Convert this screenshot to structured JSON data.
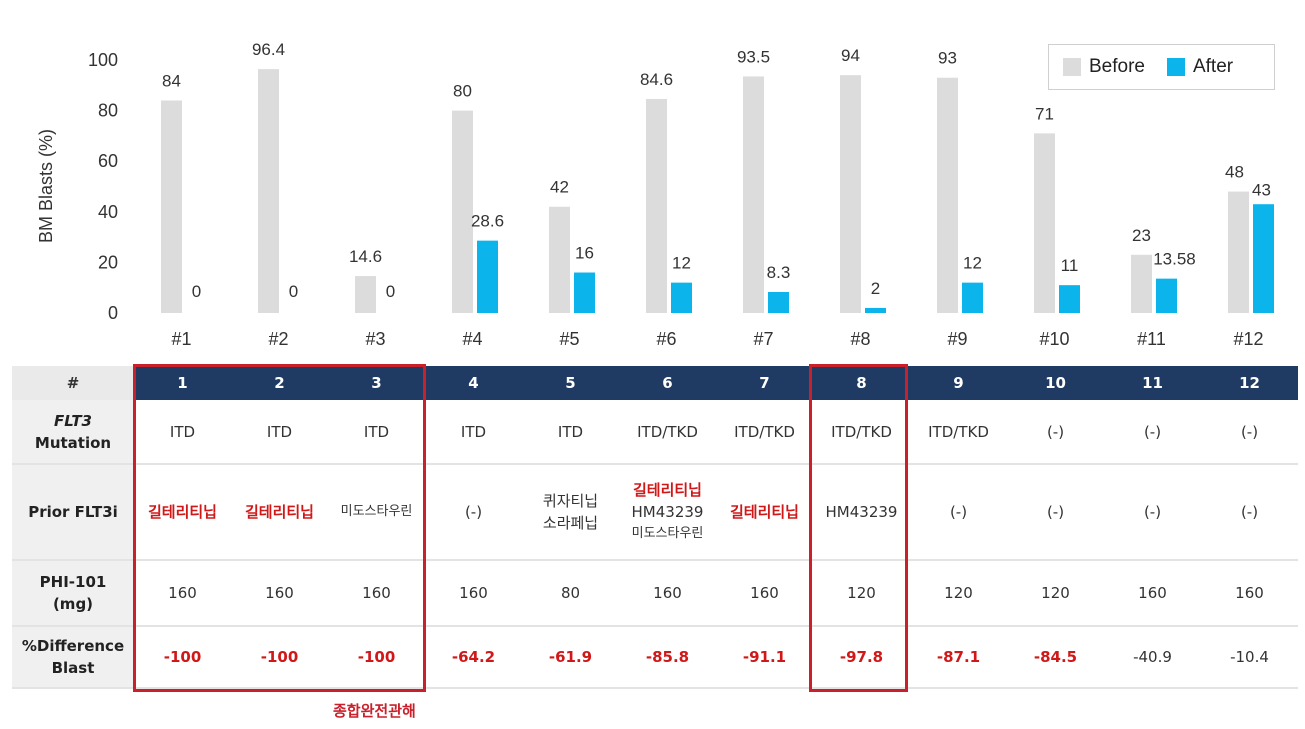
{
  "chart_data": {
    "type": "bar",
    "ylabel": "BM Blasts (%)",
    "ylim": [
      0,
      100
    ],
    "yticks": [
      0,
      20,
      40,
      60,
      80,
      100
    ],
    "categories": [
      "#1",
      "#2",
      "#3",
      "#4",
      "#5",
      "#6",
      "#7",
      "#8",
      "#9",
      "#10",
      "#11",
      "#12"
    ],
    "series": [
      {
        "name": "Before",
        "color": "#dcdcdc",
        "values": [
          84,
          96.4,
          14.6,
          80,
          42,
          84.6,
          93.5,
          94,
          93,
          71,
          23,
          48
        ],
        "labels": [
          "84",
          "96.4",
          "14.6",
          "80",
          "42",
          "84.6",
          "93.5",
          "94",
          "93",
          "71",
          "23",
          "48"
        ]
      },
      {
        "name": "After",
        "color": "#0bb4ea",
        "values": [
          0,
          0,
          0,
          28.6,
          16,
          12,
          8.3,
          2,
          12,
          11,
          13.58,
          43
        ],
        "labels": [
          "0",
          "0",
          "0",
          "28.6",
          "16",
          "12",
          "8.3",
          "2",
          "12",
          "11",
          "13.58",
          "43"
        ]
      }
    ],
    "grid": false,
    "legend_position": "top-right"
  },
  "table": {
    "header_label": "#",
    "columns": [
      "1",
      "2",
      "3",
      "4",
      "5",
      "6",
      "7",
      "8",
      "9",
      "10",
      "11",
      "12"
    ],
    "rows": [
      {
        "label_lines": [
          "FLT3",
          "Mutation"
        ],
        "cells": [
          [
            "ITD"
          ],
          [
            "ITD"
          ],
          [
            "ITD"
          ],
          [
            "ITD"
          ],
          [
            "ITD"
          ],
          [
            "ITD/TKD"
          ],
          [
            "ITD/TKD"
          ],
          [
            "ITD/TKD"
          ],
          [
            "ITD/TKD"
          ],
          [
            "(-)"
          ],
          [
            "(-)"
          ],
          [
            "(-)"
          ]
        ]
      },
      {
        "label_lines": [
          "Prior FLT3i"
        ],
        "cells": [
          [
            "길테리티닙"
          ],
          [
            "길테리티닙"
          ],
          [
            "미도스타우린"
          ],
          [
            "(-)"
          ],
          [
            "퀴자티닙",
            "소라페닙"
          ],
          [
            "길테리티닙",
            "HM43239",
            "미도스타우린"
          ],
          [
            "길테리티닙"
          ],
          [
            "HM43239"
          ],
          [
            "(-)"
          ],
          [
            "(-)"
          ],
          [
            "(-)"
          ],
          [
            "(-)"
          ]
        ]
      },
      {
        "label_lines": [
          "PHI-101",
          "(mg)"
        ],
        "cells": [
          [
            "160"
          ],
          [
            "160"
          ],
          [
            "160"
          ],
          [
            "160"
          ],
          [
            "80"
          ],
          [
            "160"
          ],
          [
            "160"
          ],
          [
            "120"
          ],
          [
            "120"
          ],
          [
            "120"
          ],
          [
            "160"
          ],
          [
            "160"
          ]
        ]
      },
      {
        "label_lines": [
          "%Difference",
          "Blast"
        ],
        "cells": [
          [
            "-100"
          ],
          [
            "-100"
          ],
          [
            "-100"
          ],
          [
            "-64.2"
          ],
          [
            "-61.9"
          ],
          [
            "-85.8"
          ],
          [
            "-91.1"
          ],
          [
            "-97.8"
          ],
          [
            "-87.1"
          ],
          [
            "-84.5"
          ],
          [
            "-40.9"
          ],
          [
            "-10.4"
          ]
        ]
      }
    ]
  },
  "annotation": "종합완전관해",
  "colors": {
    "header_bg": "#1f3b63",
    "highlight": "#c9202b",
    "before": "#dcdcdc",
    "after": "#0bb4ea"
  }
}
